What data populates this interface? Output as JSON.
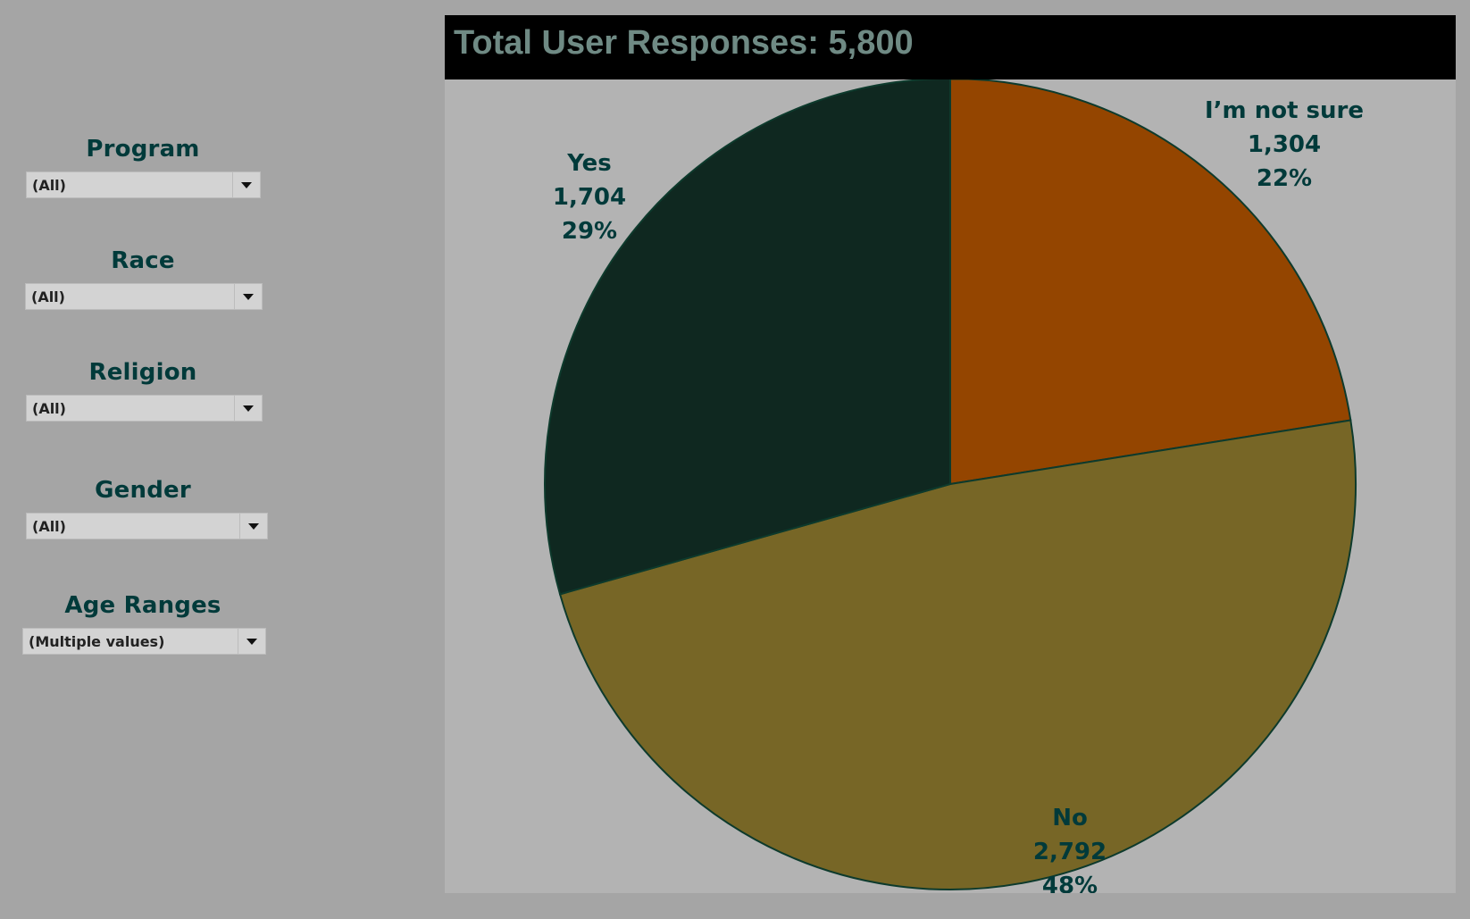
{
  "filters": [
    {
      "label": "Program",
      "value": "(All)"
    },
    {
      "label": "Race",
      "value": "(All)"
    },
    {
      "label": "Religion",
      "value": "(All)"
    },
    {
      "label": "Gender",
      "value": "(All)"
    },
    {
      "label": "Age Ranges",
      "value": "(Multiple values)"
    }
  ],
  "chart_data": {
    "type": "pie",
    "title": "Total User Responses: 5,800",
    "total": 5800,
    "slices": [
      {
        "label": "I’m not sure",
        "value": 1304,
        "value_text": "1,304",
        "percent_text": "22%",
        "color": "#944500"
      },
      {
        "label": "No",
        "value": 2792,
        "value_text": "2,792",
        "percent_text": "48%",
        "color": "#776626"
      },
      {
        "label": "Yes",
        "value": 1704,
        "value_text": "1,704",
        "percent_text": "29%",
        "color": "#0f2820"
      }
    ],
    "slice_border_color": "#0d3a2c",
    "start_angle": "12 o'clock",
    "direction": "clockwise"
  }
}
